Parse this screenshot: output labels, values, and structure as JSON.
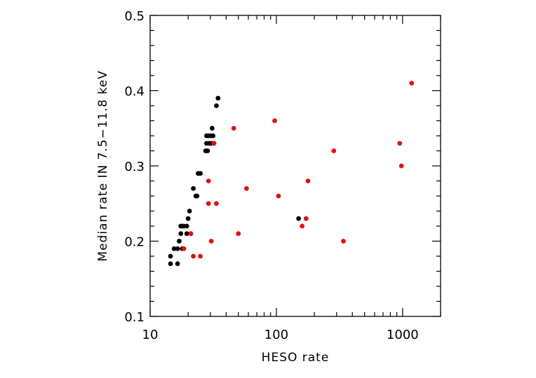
{
  "chart_data": {
    "type": "scatter",
    "xlabel": "HESO rate",
    "ylabel": "Median rate IN 7.5−11.8 keV",
    "xscale": "log",
    "xlim": [
      10,
      2000
    ],
    "ylim": [
      0.1,
      0.5
    ],
    "x_ticks": [
      10,
      100,
      1000
    ],
    "x_tick_labels": [
      "10",
      "100",
      "1000"
    ],
    "y_ticks": [
      0.1,
      0.2,
      0.3,
      0.4,
      0.5
    ],
    "y_tick_labels": [
      "0.1",
      "0.2",
      "0.3",
      "0.4",
      "0.5"
    ],
    "grid": false,
    "series": [
      {
        "color": "#000000",
        "points": [
          [
            14.5,
            0.18
          ],
          [
            14.5,
            0.17
          ],
          [
            15.5,
            0.19
          ],
          [
            16.5,
            0.19
          ],
          [
            16.5,
            0.17
          ],
          [
            17,
            0.2
          ],
          [
            17.5,
            0.21
          ],
          [
            17.5,
            0.22
          ],
          [
            18,
            0.19
          ],
          [
            18,
            0.22
          ],
          [
            18.5,
            0.22
          ],
          [
            19.5,
            0.21
          ],
          [
            19.5,
            0.22
          ],
          [
            20,
            0.23
          ],
          [
            20.5,
            0.24
          ],
          [
            21,
            0.21
          ],
          [
            22,
            0.27
          ],
          [
            23,
            0.26
          ],
          [
            23.5,
            0.26
          ],
          [
            24,
            0.29
          ],
          [
            25,
            0.29
          ],
          [
            27.5,
            0.32
          ],
          [
            28,
            0.33
          ],
          [
            28,
            0.34
          ],
          [
            28.5,
            0.32
          ],
          [
            29,
            0.34
          ],
          [
            29.5,
            0.33
          ],
          [
            30,
            0.34
          ],
          [
            30.5,
            0.33
          ],
          [
            31,
            0.35
          ],
          [
            31.5,
            0.34
          ],
          [
            32,
            0.33
          ],
          [
            33.5,
            0.38
          ],
          [
            34.5,
            0.39
          ],
          [
            150,
            0.23
          ]
        ]
      },
      {
        "color": "#e01010",
        "points": [
          [
            18.5,
            0.19
          ],
          [
            21,
            0.21
          ],
          [
            22,
            0.18
          ],
          [
            25,
            0.18
          ],
          [
            29,
            0.28
          ],
          [
            29,
            0.25
          ],
          [
            30.5,
            0.2
          ],
          [
            32,
            0.33
          ],
          [
            33.5,
            0.25
          ],
          [
            46,
            0.35
          ],
          [
            50,
            0.21
          ],
          [
            58,
            0.27
          ],
          [
            97,
            0.36
          ],
          [
            104,
            0.26
          ],
          [
            160,
            0.22
          ],
          [
            172,
            0.23
          ],
          [
            178,
            0.28
          ],
          [
            285,
            0.32
          ],
          [
            340,
            0.2
          ],
          [
            950,
            0.33
          ],
          [
            980,
            0.3
          ],
          [
            1180,
            0.41
          ]
        ]
      }
    ]
  }
}
